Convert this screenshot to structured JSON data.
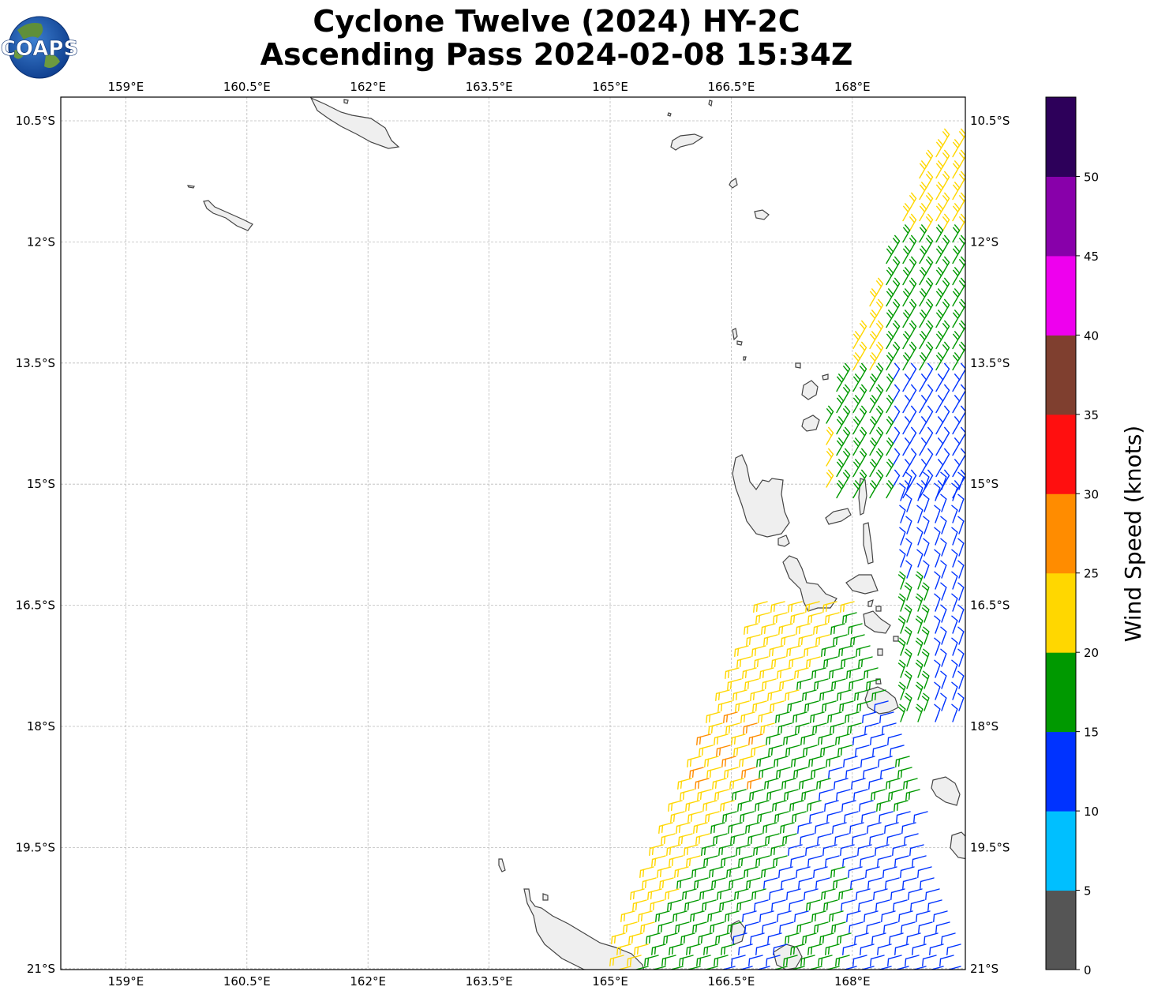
{
  "title": {
    "line1": "Cyclone Twelve (2024) HY-2C",
    "line2": "Ascending Pass 2024-02-08 15:34Z"
  },
  "logo": {
    "text": "COAPS"
  },
  "axes": {
    "lon_ticks": [
      "159°E",
      "160.5°E",
      "162°E",
      "163.5°E",
      "165°E",
      "166.5°E",
      "168°E"
    ],
    "lat_ticks": [
      "10.5°S",
      "12°S",
      "13.5°S",
      "15°S",
      "16.5°S",
      "18°S",
      "19.5°S",
      "21°S"
    ]
  },
  "colorbar": {
    "title": "Wind Speed (knots)",
    "ticks": [
      "0",
      "5",
      "10",
      "15",
      "20",
      "25",
      "30",
      "35",
      "40",
      "45",
      "50"
    ],
    "colors": [
      "#555555",
      "#00bfff",
      "#0033ff",
      "#009900",
      "#ffd700",
      "#ff8c00",
      "#ff0f0f",
      "#7f3f2f",
      "#ee00ee",
      "#8800aa",
      "#2d005a"
    ]
  }
}
